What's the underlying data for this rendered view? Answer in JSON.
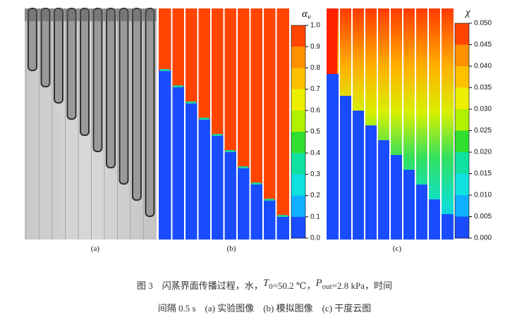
{
  "panels": [
    {
      "label": "(a)"
    },
    {
      "label": "(b)",
      "colorbar_title": "α",
      "colorbar_title_sub": "v",
      "colorbar_labels": [
        "1.0",
        "0.9",
        "0.8",
        "0.7",
        "0.6",
        "0.5",
        "0.4",
        "0.3",
        "0.2",
        "0.1",
        "0.0"
      ]
    },
    {
      "label": "(c)",
      "colorbar_title": "χ",
      "colorbar_labels": [
        "0.050",
        "0.045",
        "0.040",
        "0.035",
        "0.030",
        "0.025",
        "0.020",
        "0.015",
        "0.010",
        "0.005",
        "0.000"
      ]
    }
  ],
  "caption": {
    "line1": [
      "图 3　闪蒸界面传播过程，水，",
      "T",
      "0",
      "=50.2 ℃，",
      "P",
      "out",
      "=2.8 kPa，时间"
    ],
    "line2": "间隔 0.5 s　(a) 实验图像　(b) 模拟图像　(c) 干度云图"
  }
}
